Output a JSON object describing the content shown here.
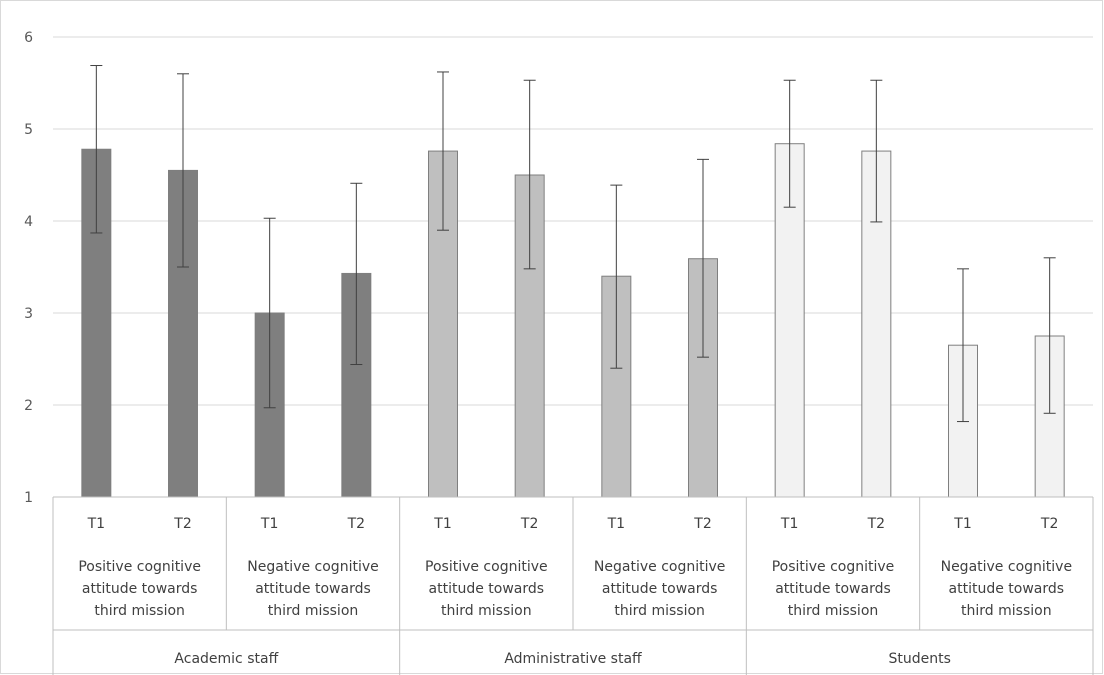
{
  "chart_data": {
    "type": "bar",
    "title": "",
    "xlabel": "",
    "ylabel": "",
    "ylim": [
      1,
      6
    ],
    "yticks": [
      "1",
      "2",
      "3",
      "4",
      "5",
      "6"
    ],
    "grid": true,
    "groups": [
      {
        "name": "Academic staff",
        "color": "#7f7f7f",
        "subgroups": [
          {
            "label": "Positive cognitive attitude towards third mission",
            "label_lines": [
              "Positive cognitive",
              "attitude towards",
              "third mission"
            ],
            "bars": [
              {
                "time": "T1",
                "value": 4.78,
                "error_low": 3.87,
                "error_high": 5.69
              },
              {
                "time": "T2",
                "value": 4.55,
                "error_low": 3.5,
                "error_high": 5.6
              }
            ]
          },
          {
            "label": "Negative cognitive attitude towards third mission",
            "label_lines": [
              "Negative cognitive",
              "attitude towards",
              "third mission"
            ],
            "bars": [
              {
                "time": "T1",
                "value": 3.0,
                "error_low": 1.97,
                "error_high": 4.03
              },
              {
                "time": "T2",
                "value": 3.43,
                "error_low": 2.44,
                "error_high": 4.41
              }
            ]
          }
        ]
      },
      {
        "name": "Administrative staff",
        "color": "#bfbfbf",
        "subgroups": [
          {
            "label": "Positive cognitive attitude towards third mission",
            "label_lines": [
              "Positive cognitive",
              "attitude towards",
              "third mission"
            ],
            "bars": [
              {
                "time": "T1",
                "value": 4.76,
                "error_low": 3.9,
                "error_high": 5.62
              },
              {
                "time": "T2",
                "value": 4.5,
                "error_low": 3.48,
                "error_high": 5.53
              }
            ]
          },
          {
            "label": "Negative cognitive attitude towards third mission",
            "label_lines": [
              "Negative cognitive",
              "attitude towards",
              "third mission"
            ],
            "bars": [
              {
                "time": "T1",
                "value": 3.4,
                "error_low": 2.4,
                "error_high": 4.39
              },
              {
                "time": "T2",
                "value": 3.59,
                "error_low": 2.52,
                "error_high": 4.67
              }
            ]
          }
        ]
      },
      {
        "name": "Students",
        "color": "#f2f2f2",
        "subgroups": [
          {
            "label": "Positive cognitive attitude towards third mission",
            "label_lines": [
              "Positive cognitive",
              "attitude towards",
              "third mission"
            ],
            "bars": [
              {
                "time": "T1",
                "value": 4.84,
                "error_low": 4.15,
                "error_high": 5.53
              },
              {
                "time": "T2",
                "value": 4.76,
                "error_low": 3.99,
                "error_high": 5.53
              }
            ]
          },
          {
            "label": "Negative cognitive attitude towards third mission",
            "label_lines": [
              "Negative cognitive",
              "attitude towards",
              "third mission"
            ],
            "bars": [
              {
                "time": "T1",
                "value": 2.65,
                "error_low": 1.82,
                "error_high": 3.48
              },
              {
                "time": "T2",
                "value": 2.75,
                "error_low": 1.91,
                "error_high": 3.6
              }
            ]
          }
        ]
      }
    ]
  },
  "colors": {
    "gridline": "#d9d9d9",
    "axis": "#bfbfbf",
    "bar_edge": "#7f7f7f",
    "error_bar": "#404040"
  }
}
